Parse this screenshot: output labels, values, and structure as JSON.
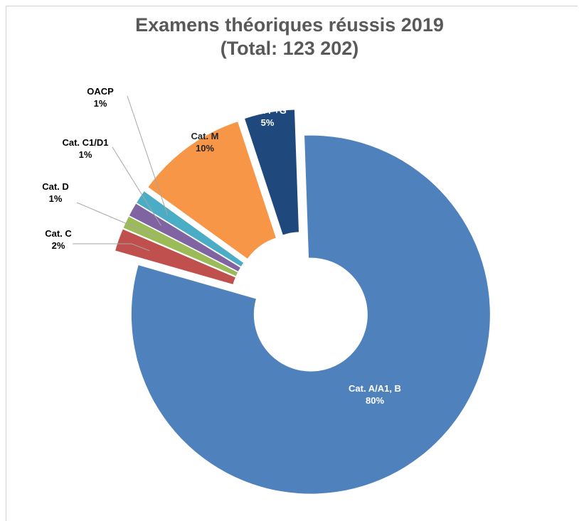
{
  "chart_data": {
    "type": "pie",
    "style": "exploded donut",
    "title": "Examens théoriques réussis 2019",
    "subtitle": "(Total: 123 202)",
    "slices": [
      {
        "label": "Cat. A/A1, B",
        "percent_label": "80%",
        "value": 80,
        "color": "#4f81bd"
      },
      {
        "label": "Cat. C",
        "percent_label": "2%",
        "value": 2,
        "color": "#c0504d"
      },
      {
        "label": "Cat. D",
        "percent_label": "1%",
        "value": 1.1,
        "color": "#9bbb59"
      },
      {
        "label": "Cat. C1/D1",
        "percent_label": "1%",
        "value": 1.2,
        "color": "#8064a2"
      },
      {
        "label": "OACP",
        "percent_label": "1%",
        "value": 1.2,
        "color": "#4bacc6"
      },
      {
        "label": "Cat. M",
        "percent_label": "10%",
        "value": 10,
        "color": "#f79646"
      },
      {
        "label": "Cat. F+G",
        "percent_label": "5%",
        "value": 4.5,
        "color": "#1f497d"
      }
    ],
    "legend": "none"
  }
}
